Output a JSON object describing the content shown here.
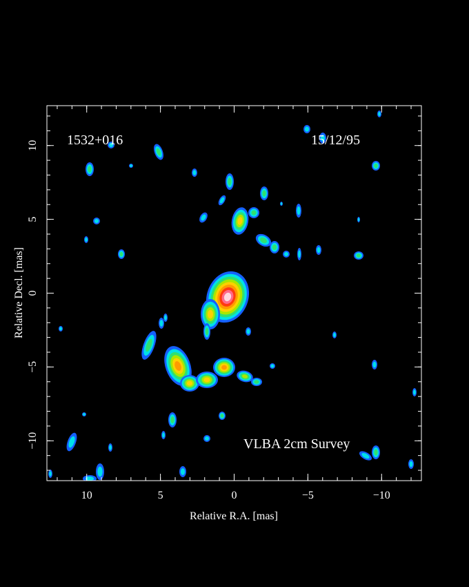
{
  "chart_data": {
    "type": "image",
    "source_label": "1532+016",
    "date_label": "15/12/95",
    "survey_label": "VLBA 2cm Survey",
    "x_label": "Relative R.A. [mas]",
    "y_label": "Relative Decl. [mas]",
    "xlim": [
      12.7,
      -12.7
    ],
    "ylim": [
      -12.7,
      12.7
    ],
    "xticks": [
      10,
      5,
      0,
      {
        "value": -5,
        "label": "−5"
      },
      {
        "value": -10,
        "label": "−10"
      }
    ],
    "yticks": [
      {
        "value": -10,
        "label": "−10"
      },
      {
        "value": -5,
        "label": "−5"
      },
      0,
      5,
      10
    ]
  }
}
